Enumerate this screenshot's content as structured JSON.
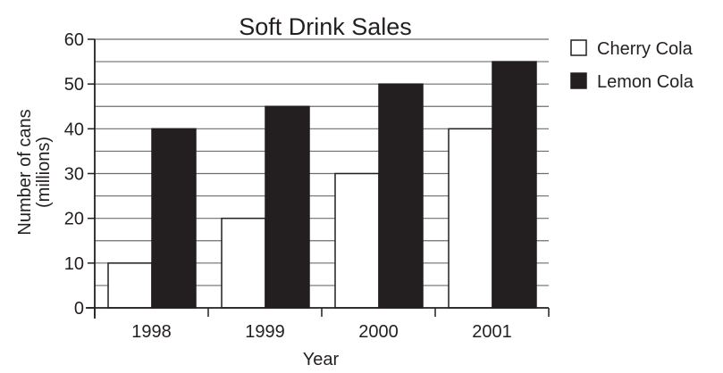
{
  "chart_data": {
    "type": "bar",
    "title": "Soft Drink Sales",
    "xlabel": "Year",
    "ylabel": "Number of cans",
    "ylabel_sub": "(millions)",
    "categories": [
      "1998",
      "1999",
      "2000",
      "2001"
    ],
    "series": [
      {
        "name": "Cherry Cola",
        "values": [
          10,
          20,
          30,
          40
        ],
        "fill": "#ffffff",
        "stroke": "#231f20"
      },
      {
        "name": "Lemon Cola",
        "values": [
          40,
          45,
          50,
          55
        ],
        "fill": "#231f20",
        "stroke": "#231f20"
      }
    ],
    "ylim": [
      0,
      60
    ],
    "yticks": [
      0,
      10,
      20,
      30,
      40,
      50,
      60
    ],
    "grid": true,
    "grid_step": 5,
    "legend_position": "top-right"
  }
}
